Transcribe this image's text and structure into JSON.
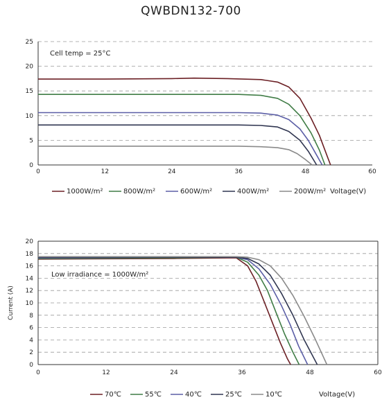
{
  "title": "QWBDN132-700",
  "colors": {
    "dark_red": "#6b1f24",
    "green": "#3f7c45",
    "blue": "#5b5ea6",
    "navy": "#2f3550",
    "gray": "#8a8a8a",
    "grid": "#9a9a9a"
  },
  "chart_data": [
    {
      "type": "line",
      "annotation": "Cell temp = 25°C",
      "xlabel": "Voltage(V)",
      "ylabel": "",
      "xlim": [
        0,
        60
      ],
      "ylim": [
        0,
        25
      ],
      "xticks": [
        0,
        12,
        24,
        36,
        48,
        60
      ],
      "yticks": [
        0,
        5,
        10,
        15,
        20,
        25
      ],
      "grid": "horizontal dashed",
      "legend_position": "bottom",
      "series": [
        {
          "name": "1000W/m²",
          "color": "#6b1f24",
          "x": [
            0,
            12,
            24,
            28,
            34,
            40,
            43,
            45,
            47,
            49,
            50.5,
            52,
            52.5
          ],
          "y": [
            17.4,
            17.4,
            17.5,
            17.6,
            17.5,
            17.3,
            16.8,
            15.8,
            13.5,
            9.5,
            6,
            1.5,
            0
          ]
        },
        {
          "name": "800W/m²",
          "color": "#3f7c45",
          "x": [
            0,
            12,
            24,
            36,
            40,
            43,
            45,
            47,
            49,
            50.5,
            51.5
          ],
          "y": [
            14.3,
            14.3,
            14.3,
            14.3,
            14.1,
            13.5,
            12.3,
            10,
            6.5,
            3,
            0
          ]
        },
        {
          "name": "600W/m²",
          "color": "#5b5ea6",
          "x": [
            0,
            12,
            24,
            36,
            40,
            43,
            45,
            47,
            48.5,
            50,
            51
          ],
          "y": [
            10.6,
            10.6,
            10.6,
            10.6,
            10.5,
            10.1,
            9.2,
            7.3,
            5,
            2,
            0
          ]
        },
        {
          "name": "400W/m²",
          "color": "#2f3550",
          "x": [
            0,
            12,
            24,
            36,
            40,
            43,
            45,
            47,
            48.5,
            50
          ],
          "y": [
            8.1,
            8.1,
            8.1,
            8.1,
            8.0,
            7.7,
            6.8,
            5,
            2.8,
            0
          ]
        },
        {
          "name": "200W/m²",
          "color": "#8a8a8a",
          "x": [
            0,
            12,
            24,
            36,
            40,
            43,
            45,
            46.5,
            48,
            49.2
          ],
          "y": [
            3.8,
            3.8,
            3.8,
            3.8,
            3.7,
            3.5,
            3.1,
            2.3,
            1.1,
            0
          ]
        }
      ]
    },
    {
      "type": "line",
      "annotation": "Low irradiance = 1000W/m²",
      "xlabel": "Voltage(V)",
      "ylabel": "Current (A)",
      "xlim": [
        0,
        60
      ],
      "ylim": [
        0,
        20
      ],
      "xticks": [
        0,
        12,
        24,
        36,
        48,
        60
      ],
      "yticks": [
        0,
        2,
        4,
        6,
        8,
        10,
        12,
        14,
        16,
        18,
        20
      ],
      "grid": "horizontal dashed",
      "legend_position": "bottom",
      "series": [
        {
          "name": "70℃",
          "color": "#6b1f24",
          "x": [
            0,
            24,
            35,
            37,
            38.5,
            40,
            41.5,
            42.8,
            44,
            44.6
          ],
          "y": [
            17.1,
            17.2,
            17.3,
            16,
            13.5,
            10,
            6.5,
            3.5,
            1,
            0
          ]
        },
        {
          "name": "55℃",
          "color": "#3f7c45",
          "x": [
            0,
            24,
            35,
            37,
            39,
            40.5,
            42,
            43.5,
            45,
            46.1
          ],
          "y": [
            17.2,
            17.3,
            17.4,
            16.6,
            14.5,
            12,
            8.5,
            5,
            2,
            0
          ]
        },
        {
          "name": "40℃",
          "color": "#5b5ea6",
          "x": [
            0,
            24,
            35,
            37,
            39,
            41,
            43,
            44.5,
            46,
            47.6
          ],
          "y": [
            17.3,
            17.4,
            17.4,
            17,
            15.5,
            13,
            9.5,
            6.5,
            3,
            0
          ]
        },
        {
          "name": "25℃",
          "color": "#2f3550",
          "x": [
            0,
            24,
            35,
            37,
            39,
            41,
            43,
            45,
            47,
            49.3
          ],
          "y": [
            17.4,
            17.4,
            17.4,
            17.2,
            16.3,
            14.5,
            11.5,
            8,
            4,
            0
          ]
        },
        {
          "name": "10℃",
          "color": "#8a8a8a",
          "x": [
            0,
            24,
            35,
            37,
            39,
            41,
            43,
            45,
            47,
            49,
            51
          ],
          "y": [
            17.5,
            17.5,
            17.5,
            17.4,
            17,
            16,
            14,
            11.2,
            7.8,
            4,
            0
          ]
        }
      ]
    }
  ]
}
